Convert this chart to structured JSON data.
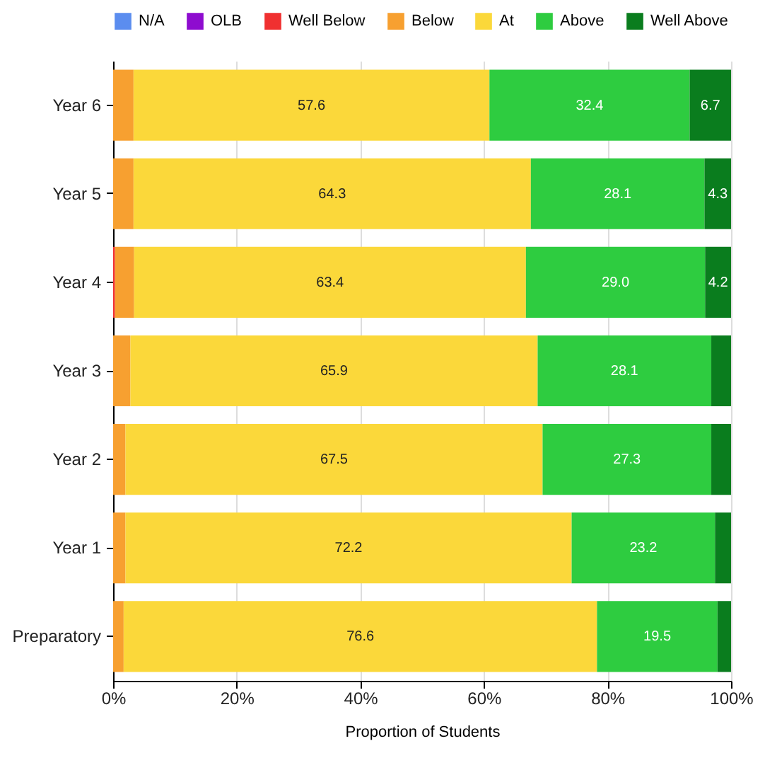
{
  "chart_data": {
    "type": "bar",
    "orientation": "horizontal",
    "stacked": true,
    "xlabel": "Proportion of Students",
    "categories": [
      "Year 6",
      "Year 5",
      "Year 4",
      "Year 3",
      "Year 2",
      "Year 1",
      "Preparatory"
    ],
    "series": [
      {
        "name": "N/A",
        "color": "#5b8def",
        "values": [
          0,
          0,
          0,
          0,
          0,
          0,
          0
        ]
      },
      {
        "name": "OLB",
        "color": "#8e0ccf",
        "values": [
          0,
          0,
          0,
          0,
          0,
          0,
          0
        ]
      },
      {
        "name": "Well Below",
        "color": "#f03030",
        "values": [
          0,
          0,
          0.3,
          0,
          0,
          0,
          0
        ]
      },
      {
        "name": "Below",
        "color": "#f7a030",
        "values": [
          3.3,
          3.3,
          3.1,
          2.8,
          2.0,
          2.0,
          1.7
        ]
      },
      {
        "name": "At",
        "color": "#fbd83a",
        "values": [
          57.6,
          64.3,
          63.4,
          65.9,
          67.5,
          72.2,
          76.6
        ],
        "value_labels": [
          "57.6",
          "64.3",
          "63.4",
          "65.9",
          "67.5",
          "72.2",
          "76.6"
        ]
      },
      {
        "name": "Above",
        "color": "#2ecc40",
        "values": [
          32.4,
          28.1,
          29.0,
          28.1,
          27.3,
          23.2,
          19.5
        ],
        "value_labels": [
          "32.4",
          "28.1",
          "29.0",
          "28.1",
          "27.3",
          "23.2",
          "19.5"
        ]
      },
      {
        "name": "Well Above",
        "color": "#0a7d1e",
        "values": [
          6.7,
          4.3,
          4.2,
          3.2,
          3.2,
          2.6,
          2.2
        ],
        "value_labels": [
          "6.7",
          "4.3",
          "4.2",
          null,
          null,
          null,
          null
        ]
      }
    ],
    "xlim": [
      0,
      100
    ],
    "xticks": [
      {
        "value": 0,
        "label": "0%"
      },
      {
        "value": 20,
        "label": "20%"
      },
      {
        "value": 40,
        "label": "40%"
      },
      {
        "value": 60,
        "label": "60%"
      },
      {
        "value": 80,
        "label": "80%"
      },
      {
        "value": 100,
        "label": "100%"
      }
    ],
    "grid": "x",
    "legend": "top"
  }
}
